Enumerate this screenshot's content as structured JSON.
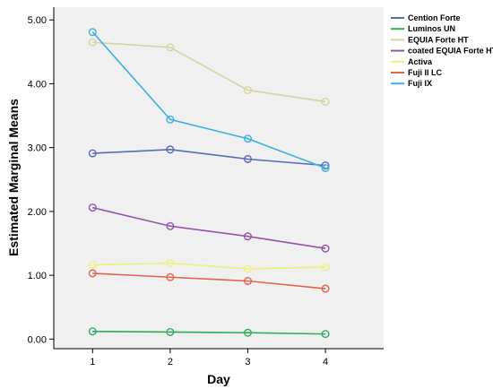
{
  "chart_data": {
    "type": "line",
    "xlabel": "Day",
    "ylabel": "Estimated Marginal Means",
    "x": [
      1,
      2,
      3,
      4
    ],
    "x_tick_labels": [
      "1",
      "2",
      "3",
      "4"
    ],
    "ylim": [
      -0.15,
      5.2
    ],
    "y_ticks": [
      0,
      1,
      2,
      3,
      4,
      5
    ],
    "y_tick_labels": [
      "0.00",
      "1.00",
      "2.00",
      "3.00",
      "4.00",
      "5.00"
    ],
    "grid": false,
    "legend_position": "right",
    "series": [
      {
        "name": "Cention Forte",
        "color": "#5a6bb5",
        "values": [
          2.91,
          2.97,
          2.82,
          2.72
        ]
      },
      {
        "name": "Luminos UN",
        "color": "#2fae5c",
        "values": [
          0.12,
          0.11,
          0.1,
          0.08
        ]
      },
      {
        "name": "EQUIA Forte HT",
        "color": "#d6d3a4",
        "values": [
          4.65,
          4.57,
          3.9,
          3.72
        ]
      },
      {
        "name": "coated EQUIA Forte HT",
        "color": "#9355a6",
        "values": [
          2.06,
          1.77,
          1.61,
          1.42
        ]
      },
      {
        "name": "Activa",
        "color": "#f0f07a",
        "values": [
          1.16,
          1.19,
          1.1,
          1.13
        ]
      },
      {
        "name": "Fuji II LC",
        "color": "#e0634f",
        "values": [
          1.03,
          0.97,
          0.91,
          0.79
        ]
      },
      {
        "name": "Fuji IX",
        "color": "#3fb0e0",
        "values": [
          4.81,
          3.44,
          3.14,
          2.68
        ]
      }
    ]
  }
}
